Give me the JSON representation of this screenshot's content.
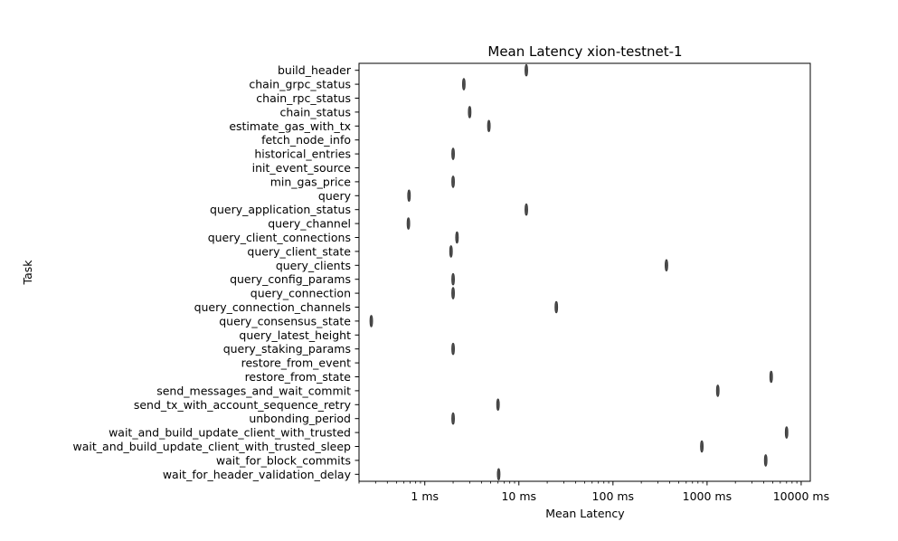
{
  "chart_data": {
    "type": "violin",
    "title": "Mean Latency xion-testnet-1",
    "xlabel": "Mean Latency",
    "ylabel": "Task",
    "x_scale": "log",
    "xlim_ms": [
      0.2,
      12500
    ],
    "x_ticks": [
      {
        "value": 1,
        "label": "1 ms"
      },
      {
        "value": 10,
        "label": "10 ms"
      },
      {
        "value": 100,
        "label": "100 ms"
      },
      {
        "value": 1000,
        "label": "1000 ms"
      },
      {
        "value": 10000,
        "label": "10000 ms"
      }
    ],
    "series_color": "#4a4a4a",
    "points": [
      {
        "task": "build_header",
        "value_ms": 12
      },
      {
        "task": "chain_grpc_status",
        "value_ms": 2.6
      },
      {
        "task": "chain_rpc_status",
        "value_ms": null
      },
      {
        "task": "chain_status",
        "value_ms": 3.0
      },
      {
        "task": "estimate_gas_with_tx",
        "value_ms": 4.8
      },
      {
        "task": "fetch_node_info",
        "value_ms": null
      },
      {
        "task": "historical_entries",
        "value_ms": 2.0
      },
      {
        "task": "init_event_source",
        "value_ms": null
      },
      {
        "task": "min_gas_price",
        "value_ms": 2.0
      },
      {
        "task": "query",
        "value_ms": 0.68
      },
      {
        "task": "query_application_status",
        "value_ms": 12
      },
      {
        "task": "query_channel",
        "value_ms": 0.67
      },
      {
        "task": "query_client_connections",
        "value_ms": 2.2
      },
      {
        "task": "query_client_state",
        "value_ms": 1.9
      },
      {
        "task": "query_clients",
        "value_ms": 370
      },
      {
        "task": "query_config_params",
        "value_ms": 2.0
      },
      {
        "task": "query_connection",
        "value_ms": 2.0
      },
      {
        "task": "query_connection_channels",
        "value_ms": 25
      },
      {
        "task": "query_consensus_state",
        "value_ms": 0.27
      },
      {
        "task": "query_latest_height",
        "value_ms": null
      },
      {
        "task": "query_staking_params",
        "value_ms": 2.0
      },
      {
        "task": "restore_from_event",
        "value_ms": null
      },
      {
        "task": "restore_from_state",
        "value_ms": 4800
      },
      {
        "task": "send_messages_and_wait_commit",
        "value_ms": 1300
      },
      {
        "task": "send_tx_with_account_sequence_retry",
        "value_ms": 6.0
      },
      {
        "task": "unbonding_period",
        "value_ms": 2.0
      },
      {
        "task": "wait_and_build_update_client_with_trusted",
        "value_ms": 7000
      },
      {
        "task": "wait_and_build_update_client_with_trusted_sleep",
        "value_ms": 880
      },
      {
        "task": "wait_for_block_commits",
        "value_ms": 4200
      },
      {
        "task": "wait_for_header_validation_delay",
        "value_ms": 6.1
      }
    ]
  }
}
